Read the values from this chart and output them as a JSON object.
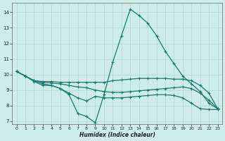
{
  "bg_color": "#ceecea",
  "grid_color": "#aed8d4",
  "line_color": "#1a7a6e",
  "xlabel": "Humidex (Indice chaleur)",
  "xlim": [
    -0.5,
    23.5
  ],
  "ylim": [
    6.8,
    14.6
  ],
  "yticks": [
    7,
    8,
    9,
    10,
    11,
    12,
    13,
    14
  ],
  "xticks": [
    0,
    1,
    2,
    3,
    4,
    5,
    6,
    7,
    8,
    9,
    10,
    11,
    12,
    13,
    14,
    15,
    16,
    17,
    18,
    19,
    20,
    21,
    22,
    23
  ],
  "line1_x": [
    0,
    1,
    2,
    3,
    4,
    5,
    6,
    7,
    8,
    9,
    10,
    11,
    12,
    13,
    14,
    15,
    16,
    17,
    18,
    19,
    20,
    21,
    22,
    23
  ],
  "line1_y": [
    10.2,
    9.9,
    9.55,
    9.3,
    9.3,
    9.1,
    8.7,
    7.5,
    7.3,
    6.9,
    8.7,
    10.8,
    12.5,
    14.2,
    13.8,
    13.3,
    12.5,
    11.5,
    10.7,
    9.9,
    9.4,
    8.9,
    8.15,
    7.8
  ],
  "line2_x": [
    0,
    1,
    2,
    3,
    4,
    5,
    6,
    7,
    8,
    9,
    10,
    11,
    12,
    13,
    14,
    15,
    16,
    17,
    18,
    19,
    20,
    21,
    22,
    23
  ],
  "line2_y": [
    10.2,
    9.9,
    9.6,
    9.55,
    9.55,
    9.5,
    9.5,
    9.5,
    9.5,
    9.5,
    9.5,
    9.6,
    9.65,
    9.7,
    9.75,
    9.75,
    9.75,
    9.75,
    9.7,
    9.7,
    9.6,
    9.3,
    8.8,
    7.8
  ],
  "line3_x": [
    0,
    1,
    2,
    3,
    4,
    5,
    6,
    7,
    8,
    9,
    10,
    11,
    12,
    13,
    14,
    15,
    16,
    17,
    18,
    19,
    20,
    21,
    22,
    23
  ],
  "line3_y": [
    10.2,
    9.9,
    9.6,
    9.5,
    9.45,
    9.4,
    9.3,
    9.2,
    9.15,
    9.0,
    8.9,
    8.85,
    8.85,
    8.9,
    8.95,
    9.0,
    9.05,
    9.1,
    9.15,
    9.2,
    9.1,
    8.8,
    8.35,
    7.8
  ],
  "line4_x": [
    0,
    1,
    2,
    3,
    4,
    5,
    6,
    7,
    8,
    9,
    10,
    11,
    12,
    13,
    14,
    15,
    16,
    17,
    18,
    19,
    20,
    21,
    22,
    23
  ],
  "line4_y": [
    10.2,
    9.9,
    9.6,
    9.4,
    9.3,
    9.1,
    8.8,
    8.5,
    8.3,
    8.6,
    8.5,
    8.5,
    8.5,
    8.55,
    8.6,
    8.65,
    8.7,
    8.7,
    8.65,
    8.5,
    8.15,
    7.8,
    7.75,
    7.75
  ]
}
